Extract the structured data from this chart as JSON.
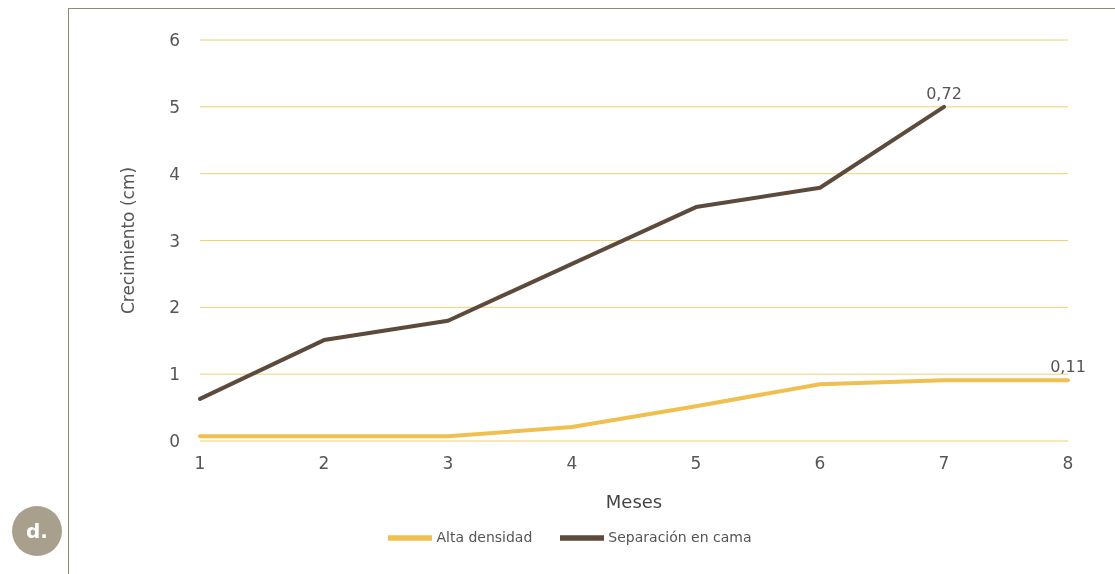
{
  "chart_data": {
    "type": "line",
    "xlabel": "Meses",
    "ylabel": "Crecimiento (cm)",
    "categories": [
      "1",
      "2",
      "3",
      "4",
      "5",
      "6",
      "7",
      "8"
    ],
    "series": [
      {
        "name": "Alta densidad",
        "color": "#efc050",
        "values": [
          0.07,
          0.07,
          0.07,
          0.21,
          0.52,
          0.85,
          0.91,
          0.91
        ]
      },
      {
        "name": "Separación en cama",
        "color": "#5c4a3c",
        "values": [
          0.63,
          1.51,
          1.8,
          2.65,
          3.5,
          3.79,
          5.0,
          null
        ]
      }
    ],
    "ylim": [
      0,
      6
    ],
    "yticks": [
      0,
      1,
      2,
      3,
      4,
      5,
      6
    ],
    "grid": "y",
    "legend": "bottom",
    "marker": "none",
    "line_style": "solid",
    "annotations": [
      "d.",
      {
        "text": "0,72",
        "x": "7",
        "y": 5
      },
      {
        "text": "0,11",
        "x": "8",
        "y": 0.91
      }
    ]
  }
}
